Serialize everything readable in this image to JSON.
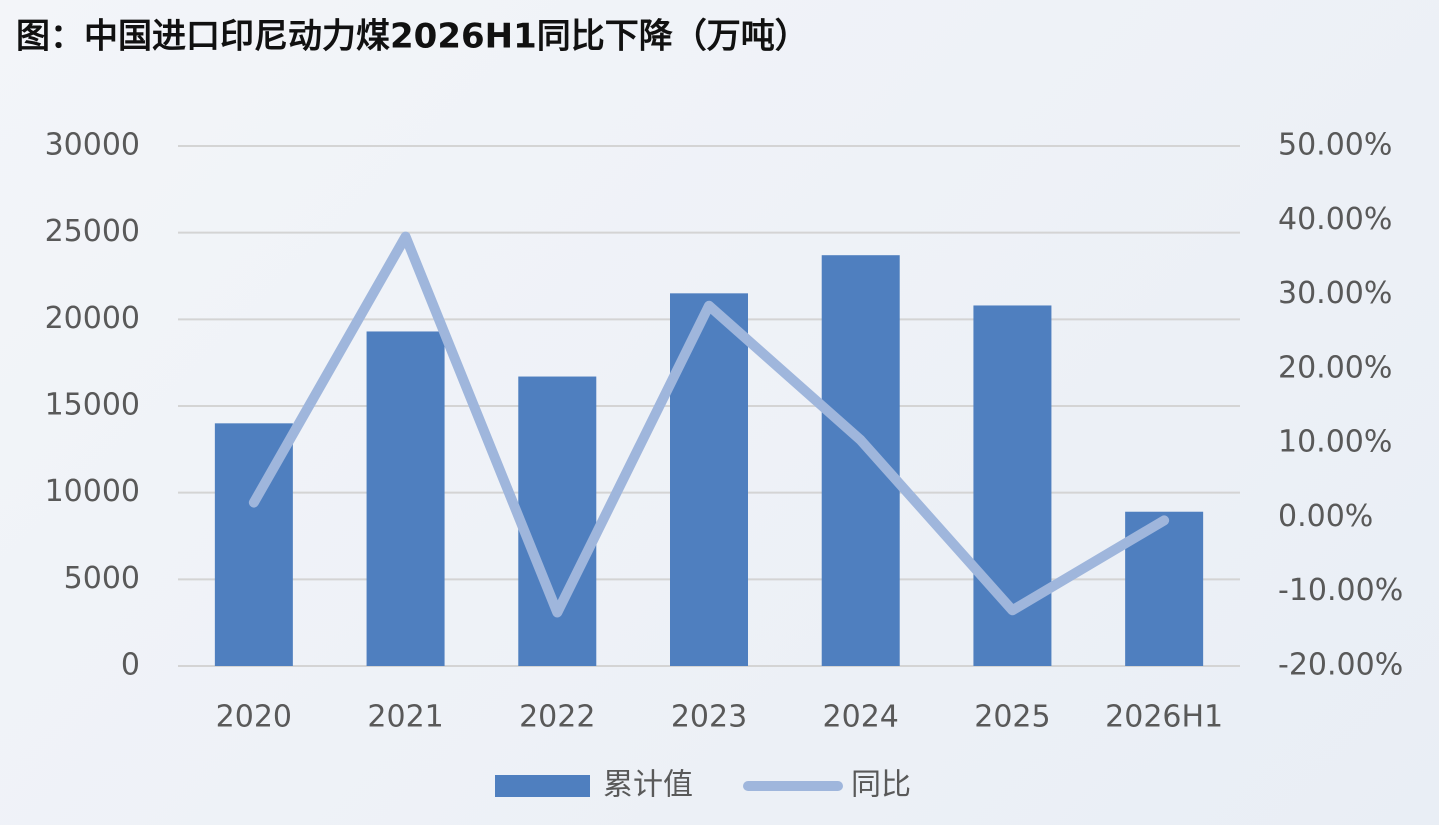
{
  "chart_data": {
    "type": "bar-line",
    "title": "图：中国进口印尼动力煤2026H1同比下降（万吨）",
    "categories": [
      "2020",
      "2021",
      "2022",
      "2023",
      "2024",
      "2025",
      "2026H1"
    ],
    "series": [
      {
        "name": "累计值",
        "type": "bar",
        "color": "#4f7fbf",
        "values": [
          14000,
          19300,
          16700,
          21500,
          23700,
          20800,
          8900
        ]
      },
      {
        "name": "同比",
        "type": "line",
        "axis": "y2",
        "color": "#9fb6dc",
        "values": [
          2.0,
          37.8,
          -12.8,
          28.5,
          10.4,
          -12.5,
          -0.4
        ]
      }
    ],
    "ylim": [
      0,
      30000
    ],
    "yticks": [
      0,
      5000,
      10000,
      15000,
      20000,
      25000,
      30000
    ],
    "y2lim": [
      -20,
      50
    ],
    "y2ticks": [
      {
        "value": -20,
        "label": "-20.00%"
      },
      {
        "value": -10,
        "label": "-10.00%"
      },
      {
        "value": 0,
        "label": "0.00%"
      },
      {
        "value": 10,
        "label": "10.00%"
      },
      {
        "value": 20,
        "label": "20.00%"
      },
      {
        "value": 30,
        "label": "30.00%"
      },
      {
        "value": 40,
        "label": "40.00%"
      },
      {
        "value": 50,
        "label": "50.00%"
      }
    ],
    "grid": true,
    "legend": "bottom"
  }
}
